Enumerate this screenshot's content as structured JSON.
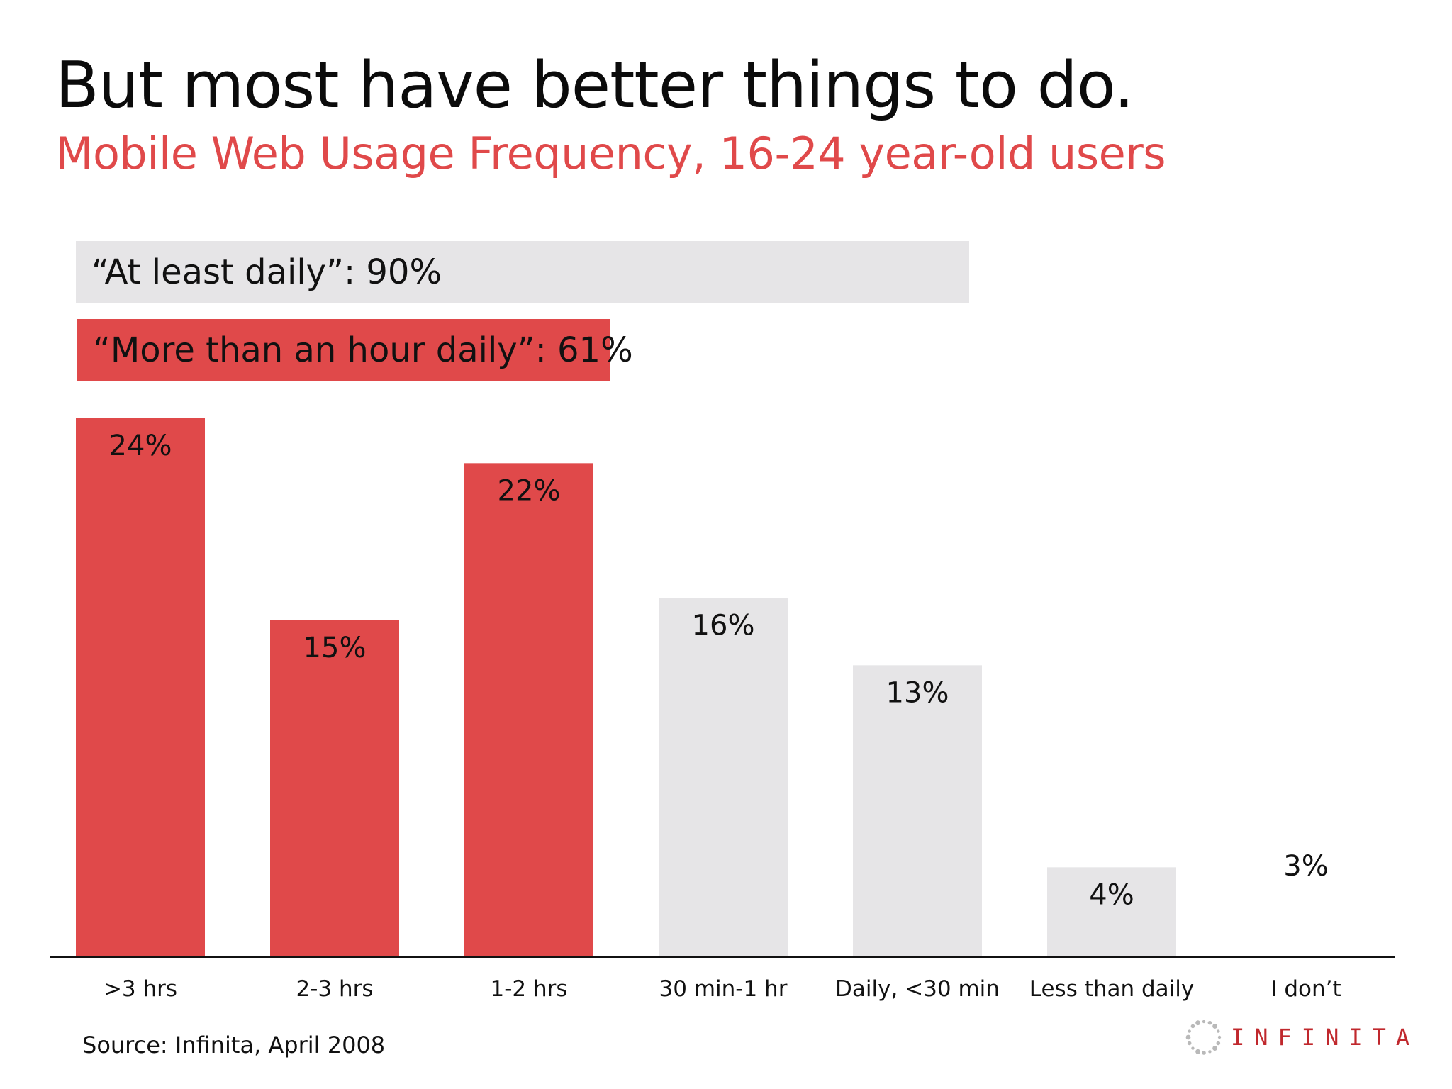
{
  "title": "But most have better things to do.",
  "subtitle": "Mobile Web Usage Frequency, 16-24 year-old users",
  "summary": {
    "at_least_daily": {
      "label": "“At least daily”: 90%",
      "value": 90
    },
    "more_than_hour": {
      "label": "“More than an hour daily”: 61%",
      "value": 61
    }
  },
  "colors": {
    "accent": "#e0494a",
    "gray": "#e6e5e7",
    "text": "#111111",
    "axis": "#111111",
    "logo": "#c0282d"
  },
  "chart_data": {
    "type": "bar",
    "title": "Mobile Web Usage Frequency, 16-24 year-old users",
    "xlabel": "",
    "ylabel": "",
    "ylim": [
      0,
      24
    ],
    "categories": [
      ">3 hrs",
      "2-3 hrs",
      "1-2 hrs",
      "30 min-1 hr",
      "Daily, <30 min",
      "Less than daily",
      "I don’t"
    ],
    "values": [
      24,
      15,
      22,
      16,
      13,
      4,
      3
    ],
    "value_labels": [
      "24%",
      "15%",
      "22%",
      "16%",
      "13%",
      "4%",
      "3%"
    ],
    "highlight": [
      true,
      true,
      true,
      false,
      false,
      false,
      false
    ],
    "bar_visible": [
      true,
      true,
      true,
      true,
      true,
      true,
      false
    ],
    "grid": false,
    "legend": "none"
  },
  "source": "Source: Infinita, April 2008",
  "logo": {
    "name": "INFINITA-logo",
    "text": "INFINITA"
  }
}
